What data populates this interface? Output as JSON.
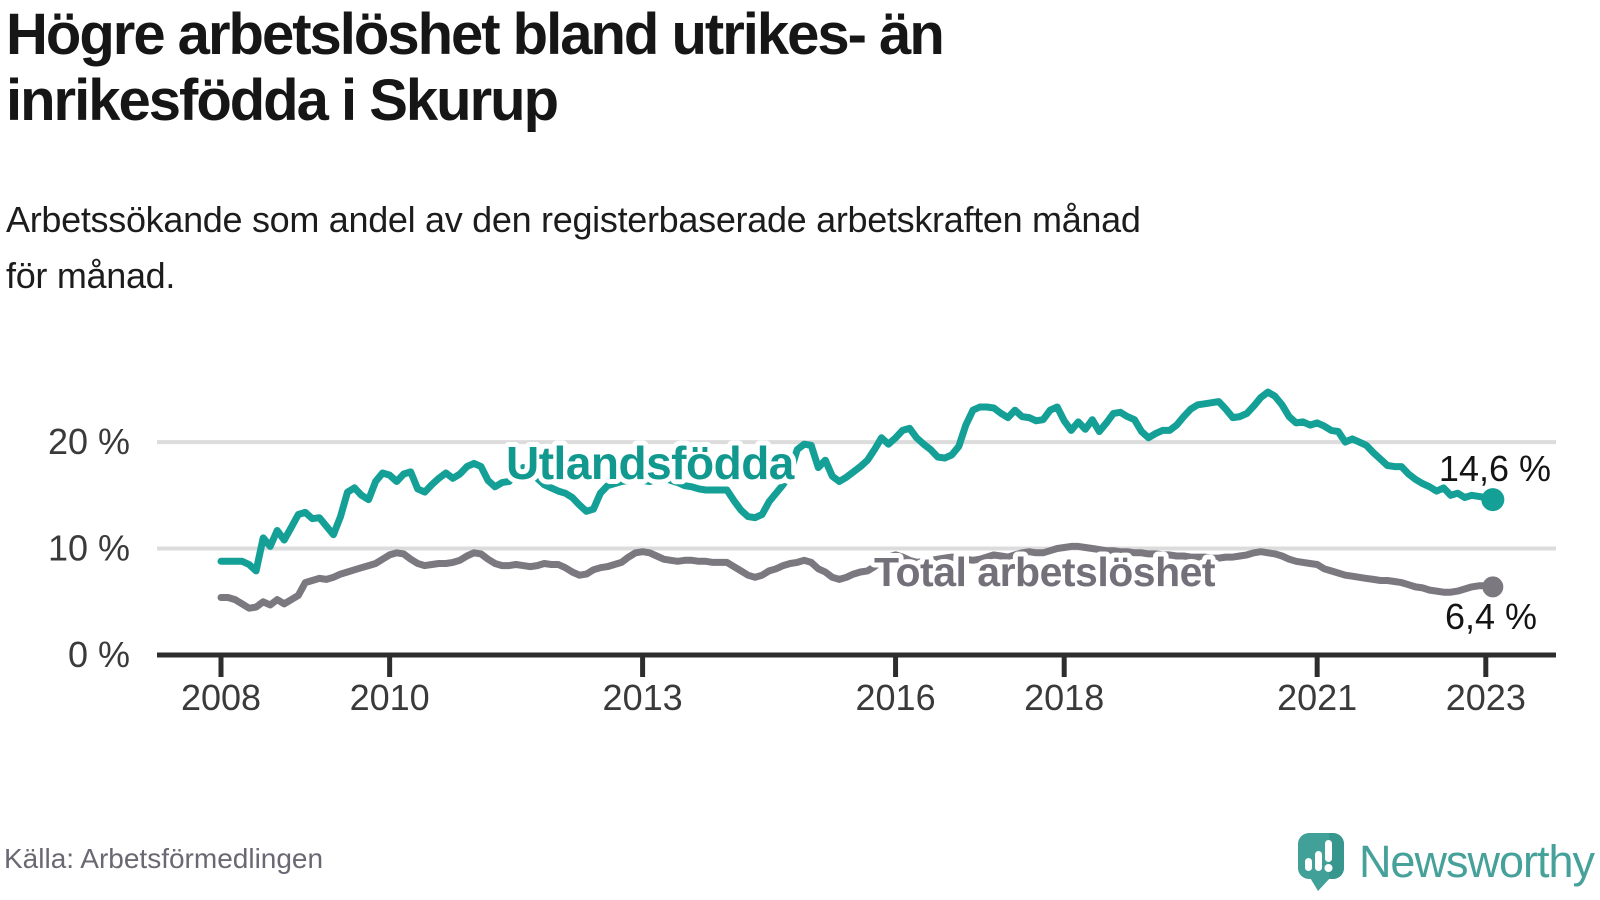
{
  "header": {
    "title_line1": "Högre arbetslöshet bland utrikes- än",
    "title_line2": "inrikesfödda i Skurup",
    "subtitle_line1": "Arbetssökande som andel av den registerbaserade arbetskraften månad",
    "subtitle_line2": "för månad."
  },
  "footer": {
    "source": "Källa: Arbetsförmedlingen",
    "brand": "Newsworthy"
  },
  "colors": {
    "accent_teal": "#14a096",
    "line_gray": "#7b7880",
    "grid": "#dcdcdc",
    "axis": "#2d2d2d",
    "logo_teal": "#41a098",
    "logo_teal_dark": "#2f8e87"
  },
  "chart_data": {
    "type": "line",
    "title": "Högre arbetslöshet bland utrikes- än inrikesfödda i Skurup",
    "subtitle": "Arbetssökande som andel av den registerbaserade arbetskraften månad för månad.",
    "x_unit": "month",
    "x_start": "2008-01",
    "x_end": "2023-02",
    "y_unit": "%",
    "ylim": [
      0,
      26
    ],
    "grid": "horizontal",
    "legend": "inline-labels",
    "x_ticks": [
      {
        "label": "2008",
        "year": 2008
      },
      {
        "label": "2010",
        "year": 2010
      },
      {
        "label": "2013",
        "year": 2013
      },
      {
        "label": "2016",
        "year": 2016
      },
      {
        "label": "2018",
        "year": 2018
      },
      {
        "label": "2021",
        "year": 2021
      },
      {
        "label": "2023",
        "year": 2023
      }
    ],
    "y_ticks": [
      {
        "label": "0 %",
        "value": 0
      },
      {
        "label": "10 %",
        "value": 10
      },
      {
        "label": "20 %",
        "value": 20
      }
    ],
    "series": [
      {
        "name": "Utlandsfödda",
        "color": "#14a096",
        "end_label": "14,6 %",
        "end_value": 14.6,
        "values": [
          8.8,
          8.8,
          8.8,
          8.8,
          8.5,
          7.9,
          11.0,
          10.2,
          11.7,
          10.8,
          12.0,
          13.2,
          13.4,
          12.8,
          12.9,
          12.1,
          11.3,
          13.0,
          15.3,
          15.7,
          15.0,
          14.6,
          16.3,
          17.1,
          16.9,
          16.3,
          17.0,
          17.2,
          15.6,
          15.3,
          16.0,
          16.6,
          17.1,
          16.6,
          17.0,
          17.7,
          18.0,
          17.7,
          16.4,
          15.8,
          16.2,
          16.3,
          17.0,
          17.6,
          17.3,
          16.6,
          16.0,
          15.7,
          15.4,
          15.2,
          14.8,
          14.1,
          13.5,
          13.7,
          15.2,
          15.9,
          16.1,
          16.3,
          16.4,
          16.5,
          16.4,
          16.3,
          16.5,
          16.6,
          16.4,
          16.2,
          15.9,
          15.8,
          15.6,
          15.5,
          15.5,
          15.5,
          15.5,
          14.5,
          13.6,
          13.0,
          12.9,
          13.2,
          14.4,
          15.2,
          16.0,
          17.1,
          19.3,
          19.8,
          19.7,
          17.6,
          18.3,
          16.8,
          16.3,
          16.7,
          17.2,
          17.7,
          18.3,
          19.3,
          20.4,
          19.8,
          20.4,
          21.1,
          21.3,
          20.4,
          19.8,
          19.3,
          18.6,
          18.5,
          18.8,
          19.6,
          21.6,
          23.0,
          23.3,
          23.3,
          23.2,
          22.7,
          22.3,
          23.0,
          22.4,
          22.3,
          22.0,
          22.1,
          23.0,
          23.3,
          22.0,
          21.1,
          21.9,
          21.2,
          22.1,
          21.0,
          21.8,
          22.7,
          22.8,
          22.4,
          22.1,
          21.0,
          20.4,
          20.8,
          21.1,
          21.1,
          21.6,
          22.4,
          23.1,
          23.5,
          23.6,
          23.7,
          23.8,
          23.1,
          22.3,
          22.4,
          22.7,
          23.4,
          24.2,
          24.7,
          24.3,
          23.5,
          22.4,
          21.8,
          21.9,
          21.6,
          21.8,
          21.5,
          21.1,
          21.0,
          20.0,
          20.3,
          20.0,
          19.7,
          19.0,
          18.4,
          17.8,
          17.7,
          17.7,
          17.0,
          16.5,
          16.1,
          15.8,
          15.4,
          15.7,
          15.0,
          15.2,
          14.8,
          15.0,
          14.9,
          14.8,
          14.6
        ]
      },
      {
        "name": "Total arbetslöshet",
        "color": "#7b7880",
        "end_label": "6,4 %",
        "end_value": 6.4,
        "values": [
          5.4,
          5.4,
          5.2,
          4.8,
          4.4,
          4.5,
          5.0,
          4.7,
          5.2,
          4.8,
          5.2,
          5.6,
          6.8,
          7.0,
          7.2,
          7.1,
          7.3,
          7.6,
          7.8,
          8.0,
          8.2,
          8.4,
          8.6,
          9.0,
          9.4,
          9.6,
          9.5,
          9.0,
          8.6,
          8.4,
          8.5,
          8.6,
          8.6,
          8.7,
          8.9,
          9.3,
          9.6,
          9.5,
          9.0,
          8.6,
          8.4,
          8.4,
          8.5,
          8.4,
          8.3,
          8.4,
          8.6,
          8.5,
          8.5,
          8.2,
          7.8,
          7.5,
          7.6,
          8.0,
          8.2,
          8.3,
          8.5,
          8.7,
          9.2,
          9.6,
          9.7,
          9.6,
          9.3,
          9.0,
          8.9,
          8.8,
          8.9,
          8.9,
          8.8,
          8.8,
          8.7,
          8.7,
          8.7,
          8.3,
          7.9,
          7.5,
          7.3,
          7.5,
          7.9,
          8.1,
          8.4,
          8.6,
          8.7,
          8.9,
          8.7,
          8.1,
          7.8,
          7.3,
          7.1,
          7.3,
          7.6,
          7.8,
          7.9,
          8.3,
          8.8,
          9.2,
          9.4,
          9.2,
          8.9,
          8.7,
          8.8,
          8.9,
          9.0,
          9.1,
          9.2,
          9.1,
          9.0,
          8.9,
          9.0,
          9.2,
          9.4,
          9.3,
          9.2,
          9.4,
          9.6,
          9.7,
          9.6,
          9.6,
          9.8,
          10.0,
          10.1,
          10.2,
          10.2,
          10.1,
          10.0,
          9.9,
          9.8,
          9.8,
          9.7,
          9.7,
          9.6,
          9.6,
          9.5,
          9.5,
          9.4,
          9.4,
          9.3,
          9.3,
          9.2,
          9.2,
          9.2,
          9.1,
          9.1,
          9.2,
          9.2,
          9.3,
          9.4,
          9.6,
          9.7,
          9.6,
          9.5,
          9.3,
          9.0,
          8.8,
          8.7,
          8.6,
          8.5,
          8.1,
          7.9,
          7.7,
          7.5,
          7.4,
          7.3,
          7.2,
          7.1,
          7.0,
          7.0,
          6.9,
          6.8,
          6.6,
          6.4,
          6.3,
          6.1,
          6.0,
          5.9,
          5.9,
          6.0,
          6.2,
          6.4,
          6.5,
          6.5,
          6.4
        ]
      }
    ]
  }
}
